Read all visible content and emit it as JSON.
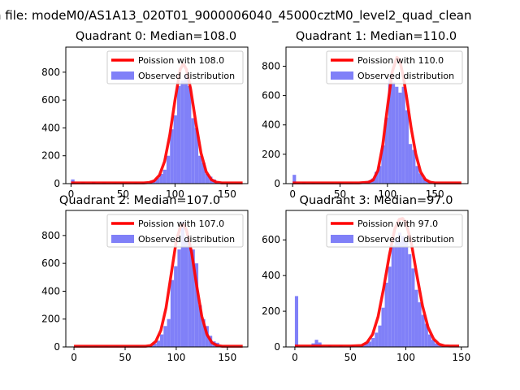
{
  "figure_title": "n file: modeM0/AS1A13_020T01_9000006040_45000cztM0_level2_quad_clean",
  "colors": {
    "bars": "#8080f8",
    "curve": "#ff0000",
    "axes": "#000000",
    "legend_border": "#cccccc"
  },
  "chart_data": [
    {
      "type": "bar",
      "title": "Quadrant 0: Median=108.0",
      "legend": [
        "Poission with 108.0",
        "Observed distribution"
      ],
      "legend_position": "top-right",
      "xlim": [
        -5,
        170
      ],
      "ylim": [
        0,
        980
      ],
      "xticks": [
        0,
        50,
        100,
        150
      ],
      "xtick_labels": [
        "0",
        "50",
        "100",
        "150"
      ],
      "yticks": [
        0,
        200,
        400,
        600,
        800
      ],
      "ytick_labels": [
        "0",
        "200",
        "400",
        "600",
        "800"
      ],
      "bin_width": 3.4,
      "bins_x": [
        0,
        10,
        20,
        30,
        40,
        50,
        60,
        68,
        71.4,
        74.8,
        78.2,
        81.6,
        85,
        88.4,
        91.8,
        95.2,
        98.6,
        102,
        105.4,
        108.8,
        112.2,
        115.6,
        119,
        122.4,
        125.8,
        129.2,
        132.6,
        136,
        139.4,
        142.8
      ],
      "bins_y": [
        30,
        10,
        12,
        8,
        6,
        5,
        6,
        8,
        10,
        15,
        25,
        40,
        70,
        100,
        200,
        390,
        490,
        700,
        740,
        780,
        700,
        470,
        400,
        200,
        150,
        70,
        50,
        30,
        15,
        8
      ],
      "curve_x": [
        0,
        10,
        20,
        30,
        40,
        50,
        60,
        70,
        75,
        80,
        85,
        90,
        95,
        100,
        105,
        108,
        111,
        115,
        120,
        125,
        130,
        135,
        140,
        145,
        150,
        155,
        160,
        165
      ],
      "curve_y": [
        5,
        5,
        5,
        5,
        5,
        5,
        5,
        5,
        8,
        20,
        60,
        160,
        350,
        600,
        820,
        860,
        820,
        680,
        440,
        220,
        85,
        28,
        10,
        5,
        5,
        5,
        5,
        5
      ]
    },
    {
      "type": "bar",
      "title": "Quadrant 1: Median=110.0",
      "legend": [
        "Poission with 110.0",
        "Observed distribution"
      ],
      "legend_position": "top-right",
      "xlim": [
        -7,
        185
      ],
      "ylim": [
        0,
        930
      ],
      "xticks": [
        0,
        50,
        100,
        150
      ],
      "xtick_labels": [
        "0",
        "50",
        "100",
        "150"
      ],
      "yticks": [
        0,
        200,
        400,
        600,
        800
      ],
      "ytick_labels": [
        "0",
        "200",
        "400",
        "600",
        "800"
      ],
      "bin_width": 3.6,
      "bins_x": [
        0,
        10,
        20,
        30,
        40,
        50,
        60,
        70,
        72,
        75.6,
        79.2,
        82.8,
        86.4,
        90,
        93.6,
        97.2,
        100.8,
        104.4,
        108,
        111.6,
        115.2,
        118.8,
        122.4,
        126,
        129.6,
        133.2,
        136.8,
        140.4,
        144,
        147.6
      ],
      "bins_y": [
        60,
        8,
        6,
        5,
        5,
        5,
        5,
        5,
        8,
        12,
        20,
        35,
        80,
        120,
        260,
        450,
        720,
        690,
        660,
        620,
        660,
        500,
        270,
        230,
        120,
        70,
        40,
        20,
        12,
        6
      ],
      "curve_x": [
        0,
        10,
        20,
        30,
        40,
        50,
        60,
        70,
        80,
        85,
        90,
        95,
        100,
        105,
        110,
        113,
        117,
        120,
        125,
        130,
        135,
        140,
        145,
        150,
        160,
        170,
        178
      ],
      "curve_y": [
        5,
        5,
        5,
        5,
        5,
        5,
        5,
        5,
        10,
        25,
        90,
        260,
        520,
        760,
        860,
        840,
        720,
        600,
        380,
        200,
        80,
        28,
        10,
        5,
        5,
        5,
        5
      ]
    },
    {
      "type": "bar",
      "title": "Quadrant 2: Median=107.0",
      "legend": [
        "Poission with 107.0",
        "Observed distribution"
      ],
      "legend_position": "top-right",
      "xlim": [
        -8,
        170
      ],
      "ylim": [
        0,
        980
      ],
      "xticks": [
        0,
        50,
        100,
        150
      ],
      "xtick_labels": [
        "0",
        "50",
        "100",
        "150"
      ],
      "yticks": [
        0,
        200,
        400,
        600,
        800
      ],
      "ytick_labels": [
        "0",
        "200",
        "400",
        "600",
        "800"
      ],
      "bin_width": 3.4,
      "bins_x": [
        0,
        10,
        20,
        30,
        40,
        50,
        60,
        70,
        74,
        77.4,
        80.8,
        84.2,
        87.6,
        91,
        94.4,
        97.8,
        101.2,
        104.6,
        108,
        111.4,
        114.8,
        118.2,
        121.6,
        125,
        128.4,
        131.8,
        135.2,
        138.6,
        142,
        145.4
      ],
      "bins_y": [
        5,
        5,
        5,
        5,
        5,
        5,
        5,
        5,
        10,
        25,
        45,
        90,
        150,
        200,
        480,
        580,
        700,
        900,
        780,
        740,
        700,
        600,
        300,
        200,
        150,
        80,
        40,
        30,
        12,
        6
      ],
      "curve_x": [
        0,
        10,
        20,
        30,
        40,
        50,
        60,
        70,
        75,
        80,
        85,
        90,
        95,
        100,
        104,
        107,
        110,
        115,
        120,
        125,
        130,
        135,
        140,
        145,
        150,
        160,
        165
      ],
      "curve_y": [
        5,
        5,
        5,
        5,
        5,
        5,
        5,
        5,
        10,
        40,
        120,
        280,
        520,
        760,
        860,
        880,
        840,
        680,
        440,
        220,
        90,
        30,
        10,
        5,
        5,
        5,
        5
      ]
    },
    {
      "type": "bar",
      "title": "Quadrant 3: Median=97.0",
      "legend": [
        "Poission with 97.0",
        "Observed distribution"
      ],
      "legend_position": "top-right",
      "xlim": [
        -8,
        156
      ],
      "ylim": [
        0,
        765
      ],
      "xticks": [
        0,
        50,
        100,
        150
      ],
      "xtick_labels": [
        "0",
        "50",
        "100",
        "150"
      ],
      "yticks": [
        0,
        200,
        400,
        600
      ],
      "ytick_labels": [
        "0",
        "200",
        "400",
        "600"
      ],
      "bin_width": 3,
      "bins_x": [
        0,
        15,
        18,
        21,
        30,
        40,
        50,
        60,
        63,
        66,
        69,
        72,
        75,
        78,
        81,
        84,
        87,
        90,
        93,
        96,
        99,
        102,
        105,
        108,
        111,
        114,
        117,
        120,
        123,
        126,
        129
      ],
      "bins_y": [
        285,
        20,
        40,
        25,
        10,
        8,
        8,
        12,
        20,
        30,
        50,
        80,
        120,
        220,
        360,
        450,
        570,
        610,
        640,
        620,
        590,
        520,
        440,
        320,
        250,
        180,
        130,
        70,
        40,
        20,
        10
      ],
      "curve_x": [
        0,
        10,
        20,
        30,
        40,
        50,
        60,
        65,
        70,
        75,
        80,
        85,
        90,
        94,
        97,
        100,
        105,
        110,
        115,
        120,
        125,
        130,
        135,
        140,
        148
      ],
      "curve_y": [
        5,
        5,
        5,
        5,
        5,
        5,
        8,
        25,
        70,
        170,
        330,
        510,
        660,
        715,
        720,
        700,
        580,
        400,
        230,
        110,
        45,
        15,
        6,
        5,
        5
      ]
    }
  ]
}
